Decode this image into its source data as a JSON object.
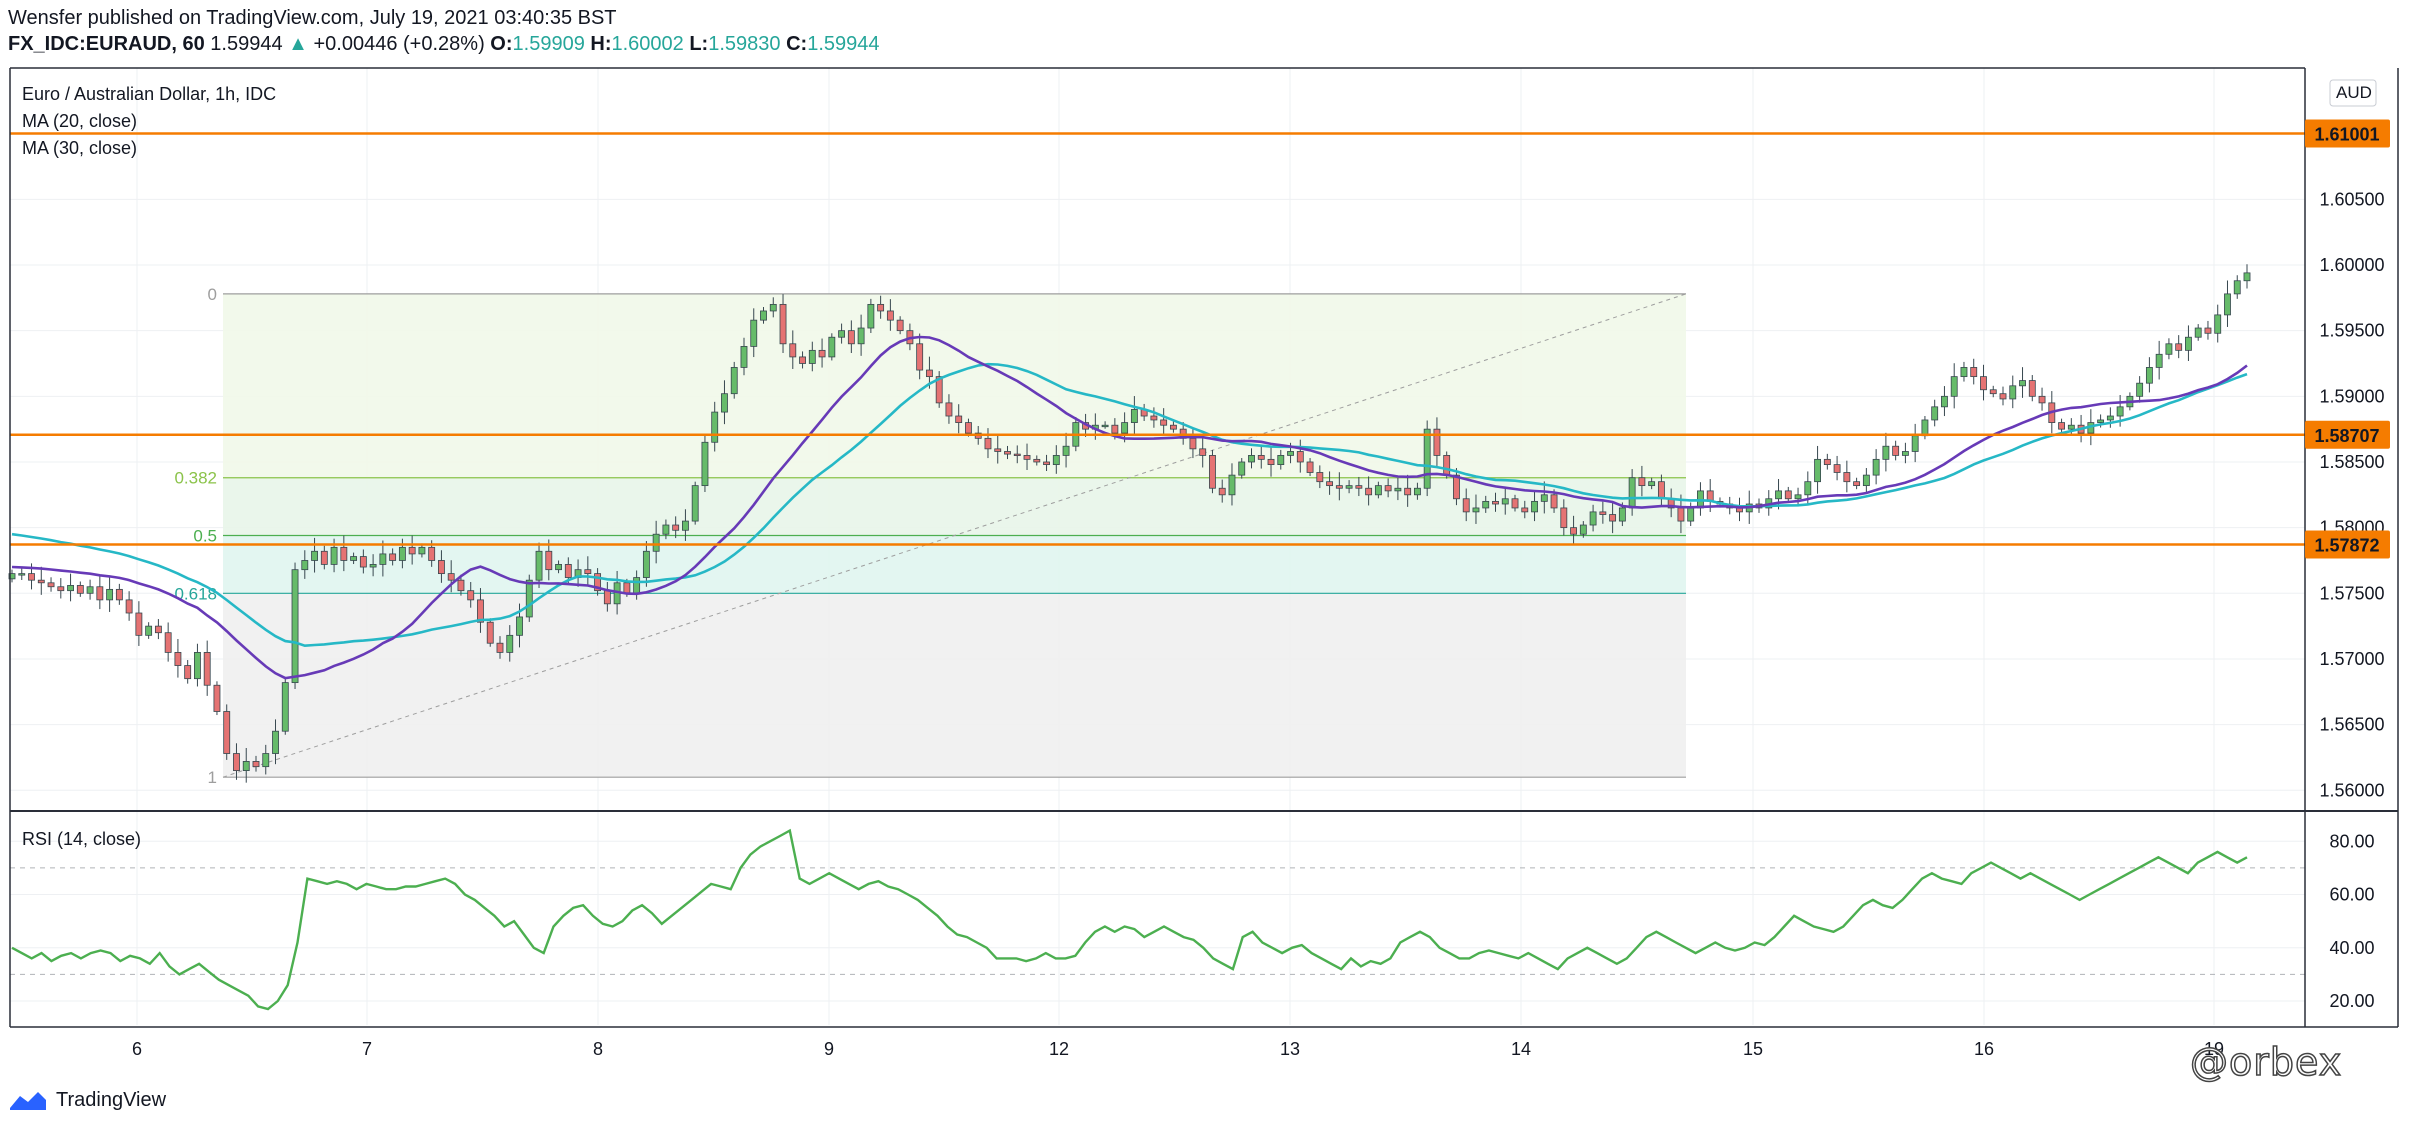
{
  "header": {
    "published_line": "Wensfer published on TradingView.com, July 19, 2021 03:40:35 BST",
    "symbol": "FX_IDC:EURAUD, 60",
    "last_price": "1.59944",
    "arrow": "▲",
    "change": "+0.00446 (+0.28%)",
    "o_label": "O:",
    "o_value": "1.59909",
    "h_label": "H:",
    "h_value": "1.60002",
    "l_label": "L:",
    "l_value": "1.59830",
    "c_label": "C:",
    "c_value": "1.59944"
  },
  "legend": {
    "title": "Euro / Australian Dollar, 1h, IDC",
    "ma20": "MA (20, close)",
    "ma30": "MA (30, close)",
    "rsi": "RSI (14, close)",
    "currency": "AUD"
  },
  "footer": {
    "brand": "TradingView",
    "watermark": "@orbex"
  },
  "colors": {
    "up": "#26a69a",
    "down": "#ef5350",
    "up_fill": "#66bb6a",
    "down_fill": "#e57373",
    "ma20": "#673ab7",
    "ma30": "#26b8c6",
    "rsi": "#4caf50",
    "horizontal": "#f57c00",
    "fib_382": "#8bc34a",
    "fib_5": "#4caf50",
    "fib_618": "#26a69a"
  },
  "chart_data": [
    {
      "type": "candlestick",
      "title": "Euro / Australian Dollar, 1h, IDC",
      "x_ticks": [
        "6",
        "7",
        "8",
        "9",
        "12",
        "13",
        "14",
        "15",
        "16",
        "19"
      ],
      "y_ticks": [
        "1.60500",
        "1.60000",
        "1.59500",
        "1.59000",
        "1.58500",
        "1.58000",
        "1.57500",
        "1.57000",
        "1.56500",
        "1.56000"
      ],
      "ylim": [
        1.5585,
        1.615
      ],
      "horizontal_levels": [
        {
          "value": 1.61001,
          "label": "1.61001"
        },
        {
          "value": 1.58707,
          "label": "1.58707"
        },
        {
          "value": 1.57872,
          "label": "1.57872"
        }
      ],
      "fibonacci": {
        "high": 1.5978,
        "low": 1.561,
        "levels": [
          {
            "ratio": "0",
            "value": 1.5978
          },
          {
            "ratio": "0.382",
            "value": 1.5838
          },
          {
            "ratio": "0.5",
            "value": 1.5794
          },
          {
            "ratio": "0.618",
            "value": 1.575
          },
          {
            "ratio": "1",
            "value": 1.561
          }
        ]
      },
      "close_path": [
        1.5765,
        1.5765,
        1.576,
        1.5758,
        1.5755,
        1.5752,
        1.5756,
        1.575,
        1.5755,
        1.5745,
        1.5753,
        1.5745,
        1.5735,
        1.5718,
        1.5725,
        1.572,
        1.5705,
        1.5695,
        1.5685,
        1.5705,
        1.568,
        1.566,
        1.5628,
        1.5615,
        1.5622,
        1.5618,
        1.5628,
        1.5645,
        1.5682,
        1.5768,
        1.5775,
        1.5782,
        1.5772,
        1.5785,
        1.5775,
        1.5778,
        1.577,
        1.5772,
        1.578,
        1.5775,
        1.5785,
        1.578,
        1.5785,
        1.5775,
        1.5765,
        1.576,
        1.5752,
        1.5745,
        1.5728,
        1.5712,
        1.5705,
        1.5718,
        1.5732,
        1.576,
        1.5782,
        1.5768,
        1.5772,
        1.5762,
        1.5768,
        1.5765,
        1.5752,
        1.5742,
        1.5758,
        1.575,
        1.5762,
        1.5782,
        1.5795,
        1.5802,
        1.5798,
        1.5805,
        1.5832,
        1.5865,
        1.5888,
        1.5902,
        1.5922,
        1.5938,
        1.5958,
        1.5965,
        1.597,
        1.594,
        1.593,
        1.5925,
        1.5935,
        1.593,
        1.5945,
        1.595,
        1.594,
        1.5952,
        1.597,
        1.5965,
        1.5958,
        1.595,
        1.594,
        1.592,
        1.5915,
        1.5895,
        1.5885,
        1.588,
        1.5872,
        1.5868,
        1.586,
        1.5858,
        1.5856,
        1.5855,
        1.5852,
        1.585,
        1.5848,
        1.5855,
        1.5862,
        1.588,
        1.5875,
        1.5878,
        1.5878,
        1.5872,
        1.588,
        1.589,
        1.5885,
        1.5882,
        1.5878,
        1.5875,
        1.5868,
        1.586,
        1.5855,
        1.583,
        1.5825,
        1.584,
        1.585,
        1.5855,
        1.5852,
        1.5848,
        1.5855,
        1.5858,
        1.585,
        1.5842,
        1.5835,
        1.5832,
        1.583,
        1.5832,
        1.583,
        1.5825,
        1.5832,
        1.5828,
        1.583,
        1.5825,
        1.583,
        1.5875,
        1.5855,
        1.584,
        1.5822,
        1.5812,
        1.5815,
        1.582,
        1.5818,
        1.5822,
        1.5815,
        1.5812,
        1.582,
        1.5825,
        1.5815,
        1.58,
        1.5795,
        1.5802,
        1.5812,
        1.581,
        1.5805,
        1.5815,
        1.5838,
        1.5832,
        1.5835,
        1.5822,
        1.5815,
        1.5805,
        1.5815,
        1.5828,
        1.582,
        1.5818,
        1.5815,
        1.5812,
        1.5818,
        1.5815,
        1.5822,
        1.5828,
        1.5822,
        1.5825,
        1.5835,
        1.5852,
        1.5848,
        1.5842,
        1.5835,
        1.5832,
        1.584,
        1.5852,
        1.5862,
        1.5855,
        1.5858,
        1.587,
        1.5882,
        1.5892,
        1.59,
        1.5915,
        1.5922,
        1.5915,
        1.5905,
        1.5902,
        1.5898,
        1.5908,
        1.5912,
        1.59,
        1.5895,
        1.588,
        1.5875,
        1.5878,
        1.5872,
        1.588,
        1.5882,
        1.5885,
        1.5892,
        1.59,
        1.591,
        1.5922,
        1.5932,
        1.594,
        1.5935,
        1.5945,
        1.5952,
        1.5948,
        1.5962,
        1.5978,
        1.5988,
        1.5994
      ]
    },
    {
      "type": "line",
      "title": "RSI (14, close)",
      "y_ticks": [
        "80.00",
        "60.00",
        "40.00",
        "20.00"
      ],
      "ylim": [
        11,
        91
      ],
      "bands": [
        70,
        30
      ],
      "values": [
        40,
        38,
        36,
        38,
        35,
        37,
        38,
        36,
        38,
        39,
        38,
        35,
        37,
        36,
        34,
        38,
        33,
        30,
        32,
        34,
        31,
        28,
        26,
        24,
        22,
        18,
        17,
        20,
        26,
        42,
        66,
        65,
        64,
        65,
        64,
        62,
        64,
        63,
        62,
        62,
        63,
        63,
        64,
        65,
        66,
        64,
        60,
        58,
        55,
        52,
        48,
        50,
        45,
        40,
        38,
        48,
        52,
        55,
        56,
        52,
        49,
        48,
        50,
        54,
        56,
        53,
        49,
        52,
        55,
        58,
        61,
        64,
        63,
        62,
        70,
        75,
        78,
        80,
        82,
        84,
        66,
        64,
        66,
        68,
        66,
        64,
        62,
        64,
        65,
        63,
        62,
        60,
        58,
        55,
        52,
        48,
        45,
        44,
        42,
        40,
        36,
        36,
        36,
        35,
        36,
        38,
        36,
        36,
        37,
        42,
        46,
        48,
        46,
        48,
        47,
        44,
        46,
        48,
        46,
        44,
        43,
        40,
        36,
        34,
        32,
        44,
        46,
        42,
        40,
        38,
        40,
        41,
        38,
        36,
        34,
        32,
        36,
        33,
        35,
        34,
        36,
        42,
        44,
        46,
        44,
        40,
        38,
        36,
        36,
        38,
        39,
        38,
        37,
        36,
        38,
        36,
        34,
        32,
        36,
        38,
        40,
        38,
        36,
        34,
        36,
        40,
        44,
        46,
        44,
        42,
        40,
        38,
        40,
        42,
        40,
        39,
        40,
        42,
        41,
        44,
        48,
        52,
        50,
        48,
        47,
        46,
        48,
        52,
        56,
        58,
        56,
        55,
        58,
        62,
        66,
        68,
        66,
        65,
        64,
        68,
        70,
        72,
        70,
        68,
        66,
        68,
        66,
        64,
        62,
        60,
        58,
        60,
        62,
        64,
        66,
        68,
        70,
        72,
        74,
        72,
        70,
        68,
        72,
        74,
        76,
        74,
        72,
        74
      ]
    }
  ]
}
